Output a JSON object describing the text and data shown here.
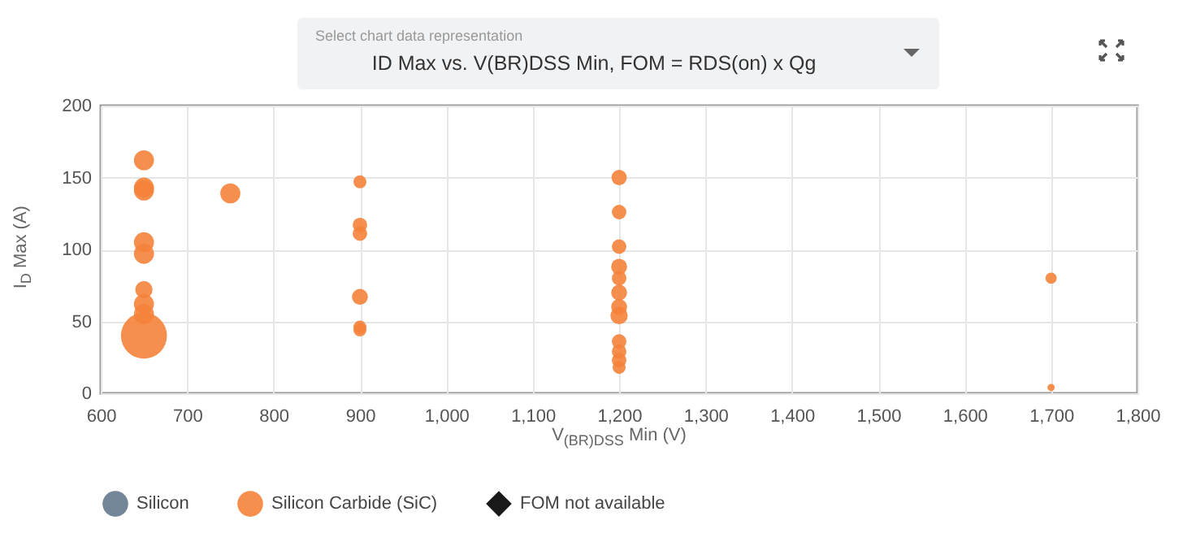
{
  "chart_data": {
    "type": "bubble",
    "title": "ID Max vs. V(BR)DSS Min, FOM = RDS(on) x Qg",
    "subtitle": "Select chart data representation",
    "xlabel": "V$_{(BR)DSS}$ Min (V)",
    "ylabel": "I$_{D}$ Max (A)",
    "xlim": [
      600,
      1800
    ],
    "xticks": [
      600,
      700,
      800,
      900,
      {
        "value": 1000,
        "label": "1,000"
      },
      {
        "value": 1100,
        "label": "1,100"
      },
      {
        "value": 1200,
        "label": "1,200"
      },
      {
        "value": 1300,
        "label": "1,300"
      },
      {
        "value": 1400,
        "label": "1,400"
      },
      {
        "value": 1500,
        "label": "1,500"
      },
      {
        "value": 1600,
        "label": "1,600"
      },
      {
        "value": 1700,
        "label": "1,700"
      },
      {
        "value": 1800,
        "label": "1,800"
      }
    ],
    "ylim": [
      0,
      200
    ],
    "yticks": [
      0,
      50,
      100,
      150,
      200
    ],
    "grid": true,
    "legend": "bottom",
    "series": [
      {
        "name": "Silicon",
        "color": "#64798c",
        "marker": "circle"
      },
      {
        "name": "Silicon Carbide (SiC)",
        "color": "#f5823a",
        "marker": "circle",
        "x": [
          650,
          650,
          650,
          650,
          650,
          650,
          650,
          650,
          650,
          750,
          900,
          900,
          900,
          900,
          900,
          900,
          1200,
          1200,
          1200,
          1200,
          1200,
          1200,
          1200,
          1200,
          1200,
          1200,
          1200,
          1200,
          1700,
          1700
        ],
        "values": [
          162,
          143,
          141,
          105,
          97,
          72,
          62,
          55,
          40,
          139,
          147,
          117,
          111,
          67,
          46,
          44,
          150,
          126,
          102,
          88,
          80,
          70,
          60,
          54,
          36,
          29,
          23,
          18,
          80,
          4
        ],
        "sizes": [
          0.19,
          0.19,
          0.19,
          0.19,
          0.19,
          0.14,
          0.19,
          0.19,
          1,
          0.19,
          0.08,
          0.1,
          0.1,
          0.12,
          0.08,
          0.08,
          0.11,
          0.1,
          0.1,
          0.12,
          0.1,
          0.12,
          0.12,
          0.14,
          0.1,
          0.1,
          0.1,
          0.08,
          0.06,
          0.025
        ]
      },
      {
        "name": "FOM not available",
        "color": "#000000",
        "marker": "diamond"
      }
    ]
  }
}
